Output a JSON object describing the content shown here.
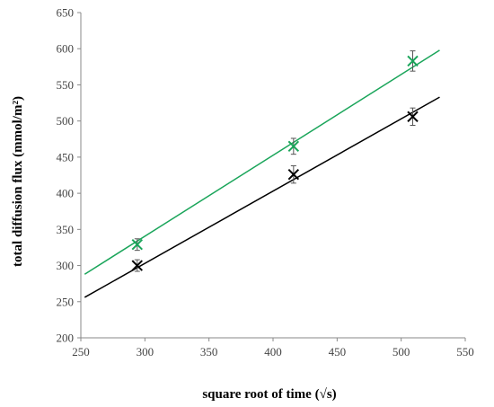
{
  "chart_data": {
    "type": "scatter",
    "title": "",
    "xlabel": "square root of time (√s)",
    "ylabel": "total diffusion flux (mmol/m²)",
    "xlim": [
      250,
      550
    ],
    "ylim": [
      200,
      650
    ],
    "x_ticks": [
      250,
      300,
      350,
      400,
      450,
      500,
      550
    ],
    "y_ticks": [
      200,
      250,
      300,
      350,
      400,
      450,
      500,
      550,
      600,
      650
    ],
    "grid": false,
    "legend": "none",
    "series": [
      {
        "color": "#1aa55a",
        "marker": "x",
        "points": [
          {
            "x": 294,
            "y": 329,
            "err": 8
          },
          {
            "x": 416,
            "y": 465,
            "err": 11
          },
          {
            "x": 509,
            "y": 583,
            "err": 14
          }
        ],
        "trendline": {
          "x": [
            253,
            530
          ],
          "y": [
            288,
            598
          ]
        }
      },
      {
        "color": "#000000",
        "marker": "x",
        "points": [
          {
            "x": 294,
            "y": 300,
            "err": 8
          },
          {
            "x": 416,
            "y": 426,
            "err": 12
          },
          {
            "x": 509,
            "y": 506,
            "err": 12
          }
        ],
        "trendline": {
          "x": [
            253,
            530
          ],
          "y": [
            256,
            533
          ]
        }
      }
    ]
  }
}
